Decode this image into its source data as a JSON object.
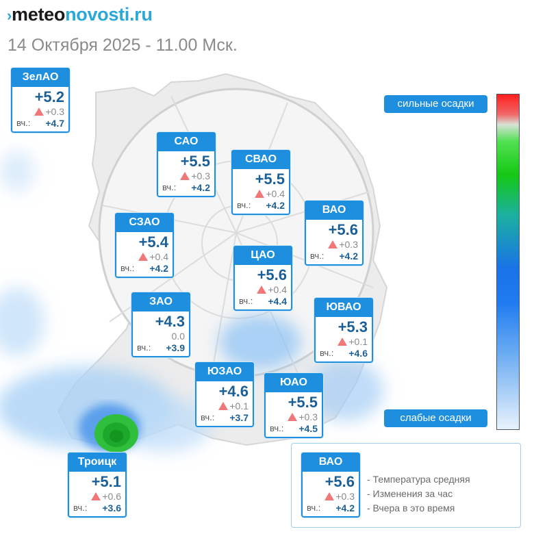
{
  "header": {
    "logo_mark": "›",
    "logo_part1": "meteo",
    "logo_part2": "novosti.ru",
    "datetime": "14 Октября 2025 - 11.00 Мск."
  },
  "scale": {
    "top_label": "сильные осадки",
    "bottom_label": "слабые осадки",
    "colors": [
      "#ff1e1e",
      "#14c814",
      "#1a73e8",
      "#e8f2fc"
    ]
  },
  "yesterday_label": "вч.:",
  "districts": [
    {
      "id": "zelao",
      "name": "ЗелАО",
      "temp": "+5.2",
      "change": "+0.3",
      "trend": "up",
      "yesterday": "+4.7"
    },
    {
      "id": "sao",
      "name": "САО",
      "temp": "+5.5",
      "change": "+0.3",
      "trend": "up",
      "yesterday": "+4.2"
    },
    {
      "id": "svao",
      "name": "СВАО",
      "temp": "+5.5",
      "change": "+0.4",
      "trend": "up",
      "yesterday": "+4.2"
    },
    {
      "id": "vao",
      "name": "ВАО",
      "temp": "+5.6",
      "change": "+0.3",
      "trend": "up",
      "yesterday": "+4.2"
    },
    {
      "id": "szao",
      "name": "СЗАО",
      "temp": "+5.4",
      "change": "+0.4",
      "trend": "up",
      "yesterday": "+4.2"
    },
    {
      "id": "cao",
      "name": "ЦАО",
      "temp": "+5.6",
      "change": "+0.4",
      "trend": "up",
      "yesterday": "+4.4"
    },
    {
      "id": "zao",
      "name": "ЗАО",
      "temp": "+4.3",
      "change": "0.0",
      "trend": "none",
      "yesterday": "+3.9"
    },
    {
      "id": "uvao",
      "name": "ЮВАО",
      "temp": "+5.3",
      "change": "+0.1",
      "trend": "up",
      "yesterday": "+4.6"
    },
    {
      "id": "uzao",
      "name": "ЮЗАО",
      "temp": "+4.6",
      "change": "+0.1",
      "trend": "up",
      "yesterday": "+3.7"
    },
    {
      "id": "uao",
      "name": "ЮАО",
      "temp": "+5.5",
      "change": "+0.3",
      "trend": "up",
      "yesterday": "+4.5"
    },
    {
      "id": "troick",
      "name": "Троицк",
      "temp": "+5.1",
      "change": "+0.6",
      "trend": "up",
      "yesterday": "+3.6"
    }
  ],
  "legend": {
    "sample": {
      "name": "ВАО",
      "temp": "+5.6",
      "change": "+0.3",
      "trend": "up",
      "yesterday": "+4.2"
    },
    "items": [
      "- Температура средняя",
      "- Изменения за час",
      "- Вчера в это время"
    ]
  }
}
